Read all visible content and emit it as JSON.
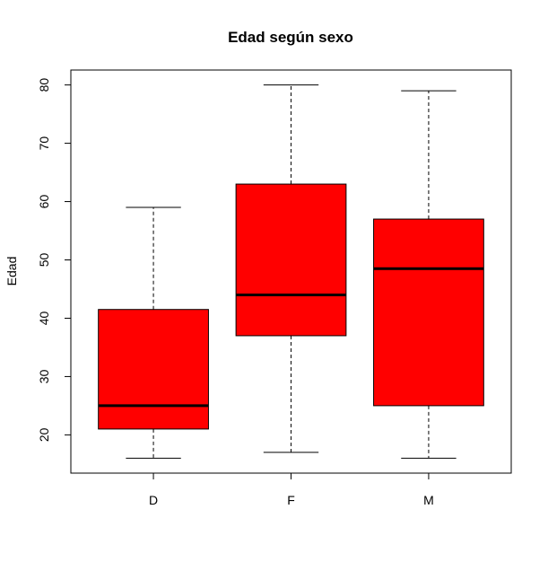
{
  "chart_data": {
    "type": "boxplot",
    "title": "Edad según sexo",
    "xlabel": "",
    "ylabel": "Edad",
    "categories": [
      "D",
      "F",
      "M"
    ],
    "boxes": [
      {
        "category": "D",
        "min": 16,
        "q1": 21,
        "median": 25,
        "q3": 41.5,
        "max": 59
      },
      {
        "category": "F",
        "min": 17,
        "q1": 37,
        "median": 44,
        "q3": 63,
        "max": 80
      },
      {
        "category": "M",
        "min": 16,
        "q1": 25,
        "median": 48.5,
        "q3": 57,
        "max": 79
      }
    ],
    "yticks": [
      20,
      30,
      40,
      50,
      60,
      70,
      80
    ],
    "ylim": [
      13.44,
      82.56
    ],
    "box_color": "#ff0000",
    "grid": false,
    "legend": "none"
  }
}
